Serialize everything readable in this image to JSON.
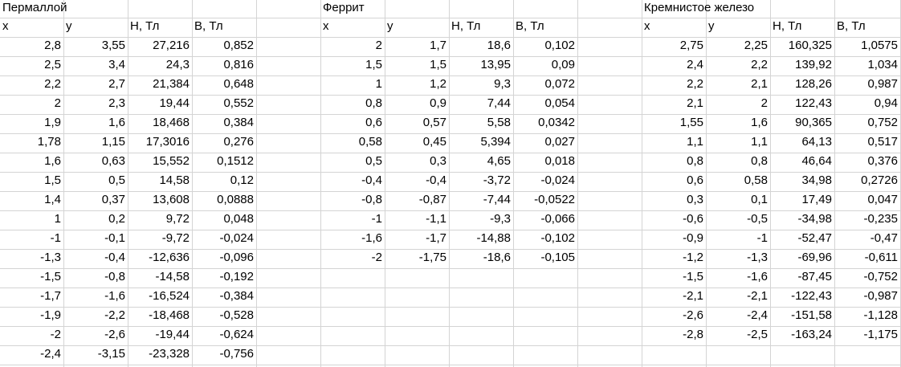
{
  "tables": [
    {
      "title": "Пермаллой",
      "headers": [
        "x",
        "y",
        "H, Тл",
        "B, Тл"
      ],
      "rows": [
        [
          "2,8",
          "3,55",
          "27,216",
          "0,852"
        ],
        [
          "2,5",
          "3,4",
          "24,3",
          "0,816"
        ],
        [
          "2,2",
          "2,7",
          "21,384",
          "0,648"
        ],
        [
          "2",
          "2,3",
          "19,44",
          "0,552"
        ],
        [
          "1,9",
          "1,6",
          "18,468",
          "0,384"
        ],
        [
          "1,78",
          "1,15",
          "17,3016",
          "0,276"
        ],
        [
          "1,6",
          "0,63",
          "15,552",
          "0,1512"
        ],
        [
          "1,5",
          "0,5",
          "14,58",
          "0,12"
        ],
        [
          "1,4",
          "0,37",
          "13,608",
          "0,0888"
        ],
        [
          "1",
          "0,2",
          "9,72",
          "0,048"
        ],
        [
          "-1",
          "-0,1",
          "-9,72",
          "-0,024"
        ],
        [
          "-1,3",
          "-0,4",
          "-12,636",
          "-0,096"
        ],
        [
          "-1,5",
          "-0,8",
          "-14,58",
          "-0,192"
        ],
        [
          "-1,7",
          "-1,6",
          "-16,524",
          "-0,384"
        ],
        [
          "-1,9",
          "-2,2",
          "-18,468",
          "-0,528"
        ],
        [
          "-2",
          "-2,6",
          "-19,44",
          "-0,624"
        ],
        [
          "-2,4",
          "-3,15",
          "-23,328",
          "-0,756"
        ]
      ]
    },
    {
      "title": "Феррит",
      "headers": [
        "x",
        "y",
        "H, Тл",
        "B, Тл"
      ],
      "rows": [
        [
          "2",
          "1,7",
          "18,6",
          "0,102"
        ],
        [
          "1,5",
          "1,5",
          "13,95",
          "0,09"
        ],
        [
          "1",
          "1,2",
          "9,3",
          "0,072"
        ],
        [
          "0,8",
          "0,9",
          "7,44",
          "0,054"
        ],
        [
          "0,6",
          "0,57",
          "5,58",
          "0,0342"
        ],
        [
          "0,58",
          "0,45",
          "5,394",
          "0,027"
        ],
        [
          "0,5",
          "0,3",
          "4,65",
          "0,018"
        ],
        [
          "-0,4",
          "-0,4",
          "-3,72",
          "-0,024"
        ],
        [
          "-0,8",
          "-0,87",
          "-7,44",
          "-0,0522"
        ],
        [
          "-1",
          "-1,1",
          "-9,3",
          "-0,066"
        ],
        [
          "-1,6",
          "-1,7",
          "-14,88",
          "-0,102"
        ],
        [
          "-2",
          "-1,75",
          "-18,6",
          "-0,105"
        ]
      ]
    },
    {
      "title": "Кремнистое железо",
      "headers": [
        "x",
        "y",
        "H, Тл",
        "B, Тл"
      ],
      "rows": [
        [
          "2,75",
          "2,25",
          "160,325",
          "1,0575"
        ],
        [
          "2,4",
          "2,2",
          "139,92",
          "1,034"
        ],
        [
          "2,2",
          "2,1",
          "128,26",
          "0,987"
        ],
        [
          "2,1",
          "2",
          "122,43",
          "0,94"
        ],
        [
          "1,55",
          "1,6",
          "90,365",
          "0,752"
        ],
        [
          "1,1",
          "1,1",
          "64,13",
          "0,517"
        ],
        [
          "0,8",
          "0,8",
          "46,64",
          "0,376"
        ],
        [
          "0,6",
          "0,58",
          "34,98",
          "0,2726"
        ],
        [
          "0,3",
          "0,1",
          "17,49",
          "0,047"
        ],
        [
          "-0,6",
          "-0,5",
          "-34,98",
          "-0,235"
        ],
        [
          "-0,9",
          "-1",
          "-52,47",
          "-0,47"
        ],
        [
          "-1,2",
          "-1,3",
          "-69,96",
          "-0,611"
        ],
        [
          "-1,5",
          "-1,6",
          "-87,45",
          "-0,752"
        ],
        [
          "-2,1",
          "-2,1",
          "-122,43",
          "-0,987"
        ],
        [
          "-2,6",
          "-2,4",
          "-151,58",
          "-1,128"
        ],
        [
          "-2,8",
          "-2,5",
          "-163,24",
          "-1,175"
        ]
      ]
    }
  ]
}
